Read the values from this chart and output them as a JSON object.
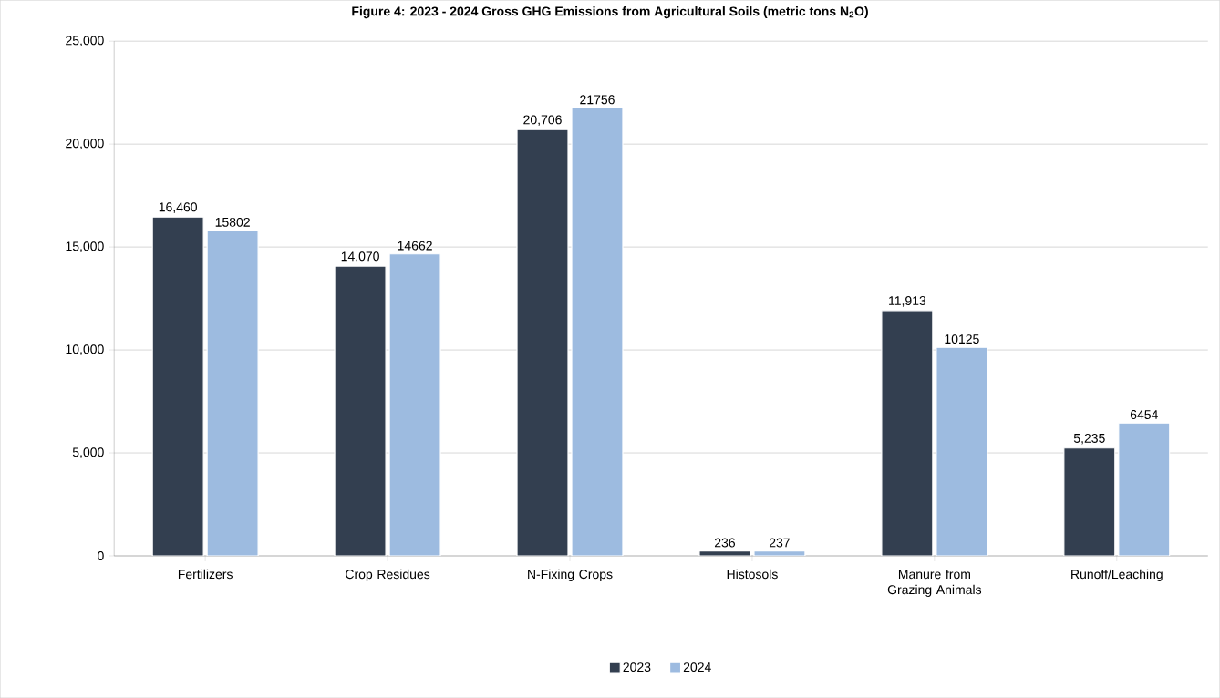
{
  "chart_data": {
    "type": "bar",
    "title": "Figure 4: 2023 - 2024 Gross GHG Emissions from Agricultural Soils (metric tons N$_{2}$O)",
    "categories": [
      "Fertilizers",
      "Crop Residues",
      "N-Fixing Crops",
      "Histosols",
      "Manure from Grazing Animals",
      "Runoff/Leaching"
    ],
    "series": [
      {
        "name": "2023",
        "color": "#333f50",
        "values": [
          16460,
          14070,
          20706,
          236,
          11913,
          5235
        ],
        "value_labels": [
          "16,460",
          "14,070",
          "20,706",
          "236",
          "11,913",
          "5,235"
        ]
      },
      {
        "name": "2024",
        "color": "#9dbbe0",
        "values": [
          15802,
          14662,
          21756,
          237,
          10125,
          6454
        ],
        "value_labels": [
          "15802",
          "14662",
          "21756",
          "237",
          "10125",
          "6454"
        ]
      }
    ],
    "ylim": [
      0,
      25000
    ],
    "yticks": [
      0,
      {
        "value": 5000,
        "label": "5,000"
      },
      {
        "value": 10000,
        "label": "10,000"
      },
      {
        "value": 15000,
        "label": "15,000"
      },
      {
        "value": 20000,
        "label": "20,000"
      },
      {
        "value": 25000,
        "label": "25,000"
      }
    ],
    "grid": "y",
    "legend": "bottom"
  }
}
